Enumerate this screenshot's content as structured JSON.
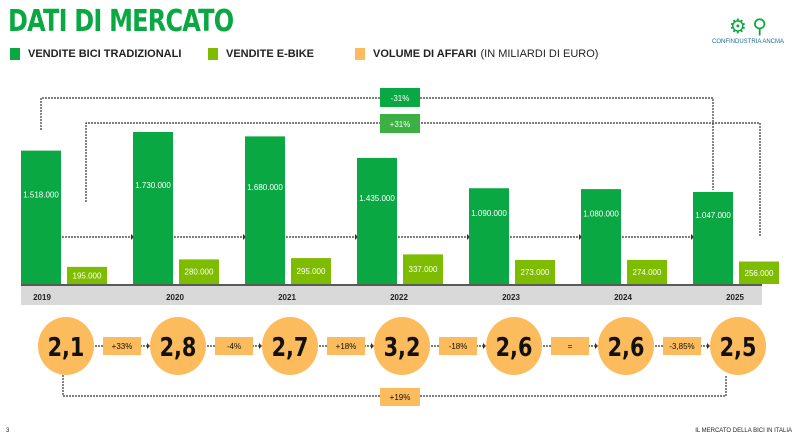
{
  "title": "DATI DI MERCATO",
  "legend": [
    {
      "label": "VENDITE BICI TRADIZIONALI",
      "color": "#0aa843"
    },
    {
      "label": "VENDITE E-BIKE",
      "color": "#7ebc00"
    },
    {
      "label": "VOLUME DI AFFARI",
      "extra": "(IN MILIARDI DI EURO)",
      "color": "#fcbb5c"
    }
  ],
  "logo": {
    "text": "CONFINDUSTRIA ANCMA"
  },
  "chart_data": {
    "type": "bar",
    "categories": [
      "2019",
      "2020",
      "2021",
      "2022",
      "2023",
      "2024",
      "2025"
    ],
    "series": [
      {
        "name": "VENDITE BICI TRADIZIONALI",
        "values": [
          1518000,
          1730000,
          1680000,
          1435000,
          1090000,
          1080000,
          1047000
        ],
        "labels": [
          "1.518.000",
          "1.730.000",
          "1.680.000",
          "1.435.000",
          "1.090.000",
          "1.080.000",
          "1.047.000"
        ]
      },
      {
        "name": "VENDITE E-BIKE",
        "values": [
          195000,
          280000,
          295000,
          337000,
          273000,
          274000,
          256000
        ],
        "labels": [
          "195.000",
          "280.000",
          "295.000",
          "337.000",
          "273.000",
          "274.000",
          "256.000"
        ]
      }
    ],
    "volume": {
      "values": [
        "2,1",
        "2,8",
        "2,7",
        "3,2",
        "2,6",
        "2,6",
        "2,5"
      ],
      "changes": [
        "+33%",
        "-4%",
        "+18%",
        "-18%",
        "=",
        "-3,85%"
      ],
      "overall": "+19%"
    },
    "comparisons": {
      "traditional_2019_2025": "-31%",
      "ebike_2019_2025": "+31%"
    }
  },
  "footer": {
    "page": "3",
    "text": "IL MERCATO DELLA BICI IN ITALIA"
  }
}
